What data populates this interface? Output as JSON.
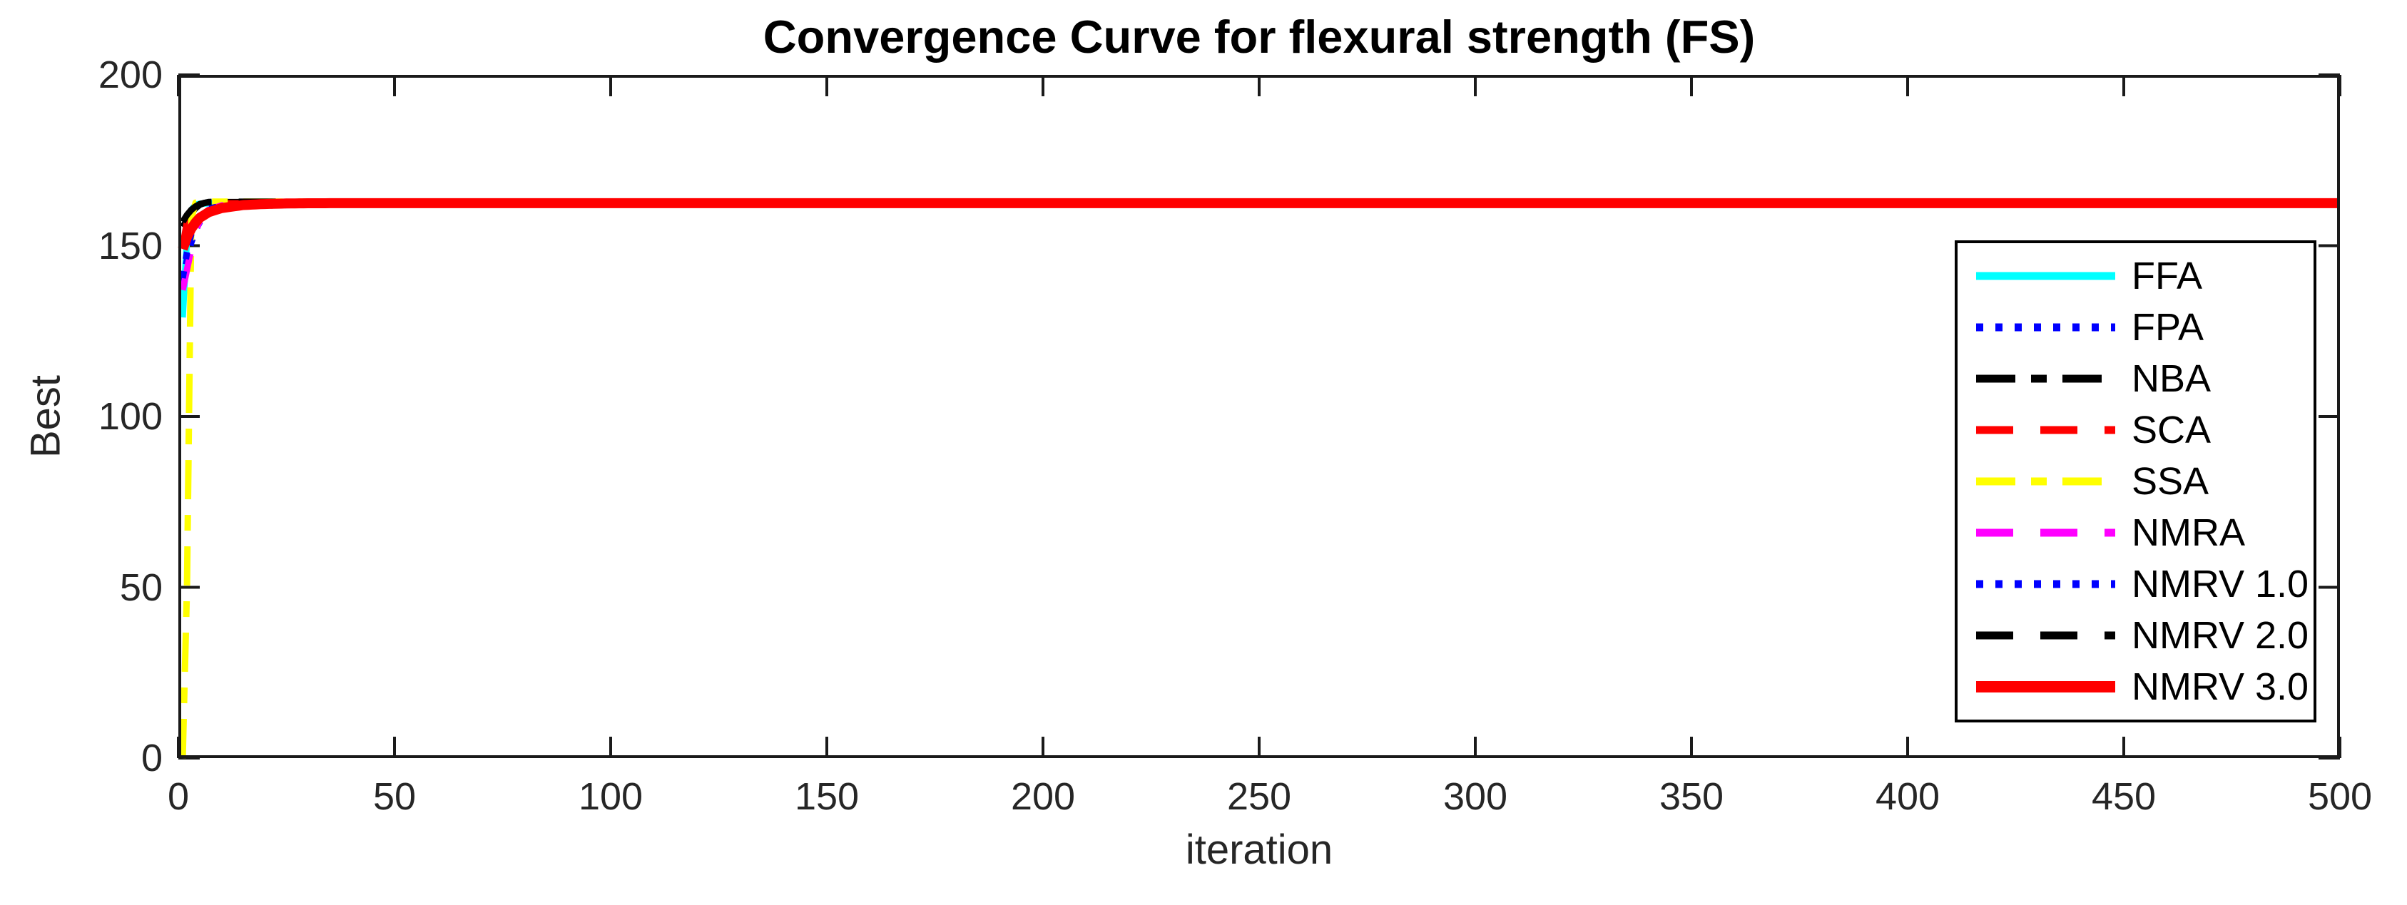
{
  "chart_data": {
    "type": "line",
    "title": "Convergence Curve for flexural strength (FS)",
    "xlabel": "iteration",
    "ylabel": "Best",
    "xlim": [
      0,
      500
    ],
    "ylim": [
      0,
      200
    ],
    "x_ticks": [
      0,
      50,
      100,
      150,
      200,
      250,
      300,
      350,
      400,
      450,
      500
    ],
    "y_ticks": [
      0,
      50,
      100,
      150,
      200
    ],
    "grid": false,
    "legend_position": "inside-right",
    "axis_color": "#1a1a1a",
    "text_color": "#262626",
    "converged_value": 162.4,
    "series": [
      {
        "name": "FFA",
        "color": "#00FFFF",
        "style": "solid",
        "width": 9,
        "points": [
          [
            1,
            129
          ],
          [
            2,
            152
          ],
          [
            3,
            160.5
          ],
          [
            4,
            162
          ],
          [
            5,
            162.3
          ],
          [
            8,
            162.4
          ],
          [
            500,
            162.4
          ]
        ]
      },
      {
        "name": "FPA",
        "color": "#0000FF",
        "style": "dotted",
        "width": 9,
        "points": [
          [
            1,
            139
          ],
          [
            2,
            146
          ],
          [
            3,
            151
          ],
          [
            4,
            154.5
          ],
          [
            5,
            157
          ],
          [
            7,
            159.8
          ],
          [
            10,
            161.2
          ],
          [
            15,
            161.6
          ],
          [
            20,
            161.8
          ],
          [
            30,
            161.95
          ],
          [
            40,
            162.05
          ],
          [
            50,
            162.3
          ],
          [
            60,
            162.4
          ],
          [
            500,
            162.4
          ]
        ]
      },
      {
        "name": "NBA",
        "color": "#000000",
        "style": "dashdot",
        "width": 9,
        "points": [
          [
            1,
            155.5
          ],
          [
            2,
            157.5
          ],
          [
            3,
            159.5
          ],
          [
            4,
            161
          ],
          [
            5,
            162
          ],
          [
            6,
            162.5
          ],
          [
            7,
            162.7
          ],
          [
            10,
            162.75
          ],
          [
            500,
            162.75
          ]
        ]
      },
      {
        "name": "SCA",
        "color": "#FF0000",
        "style": "dashed",
        "width": 9,
        "points": [
          [
            1,
            150
          ],
          [
            2,
            157
          ],
          [
            3,
            160.5
          ],
          [
            4,
            162
          ],
          [
            5,
            162.4
          ],
          [
            500,
            162.4
          ]
        ]
      },
      {
        "name": "SSA",
        "color": "#FFFF00",
        "style": "dashdot",
        "width": 9,
        "points": [
          [
            1,
            0
          ],
          [
            2,
            50
          ],
          [
            3,
            158
          ],
          [
            4,
            162.6
          ],
          [
            5,
            162.9
          ],
          [
            500,
            162.9
          ]
        ]
      },
      {
        "name": "NMRA",
        "color": "#FF00FF",
        "style": "dashed",
        "width": 9,
        "points": [
          [
            1,
            137
          ],
          [
            2,
            143
          ],
          [
            3,
            149
          ],
          [
            4,
            154
          ],
          [
            5,
            157.5
          ],
          [
            7,
            160.5
          ],
          [
            10,
            161.8
          ],
          [
            15,
            162.2
          ],
          [
            20,
            162.3
          ],
          [
            500,
            162.3
          ]
        ]
      },
      {
        "name": "NMRV 1.0",
        "color": "#0000FF",
        "style": "dotted",
        "width": 9,
        "points": [
          [
            1,
            140.5
          ],
          [
            2,
            148
          ],
          [
            3,
            153.5
          ],
          [
            4,
            156.5
          ],
          [
            5,
            158.5
          ],
          [
            7,
            160.8
          ],
          [
            10,
            161.7
          ],
          [
            15,
            161.95
          ],
          [
            20,
            162.1
          ],
          [
            30,
            162.25
          ],
          [
            50,
            162.4
          ],
          [
            500,
            162.4
          ]
        ]
      },
      {
        "name": "NMRV 2.0",
        "color": "#000000",
        "style": "dashed",
        "width": 9,
        "points": [
          [
            1,
            157
          ],
          [
            2,
            159
          ],
          [
            3,
            160.5
          ],
          [
            4,
            161.5
          ],
          [
            5,
            162.2
          ],
          [
            7,
            162.8
          ],
          [
            10,
            162.85
          ],
          [
            500,
            162.85
          ]
        ]
      },
      {
        "name": "NMRV 3.0",
        "color": "#FF0000",
        "style": "solid",
        "width": 14,
        "points": [
          [
            1,
            149
          ],
          [
            2,
            152.5
          ],
          [
            3,
            155
          ],
          [
            4,
            156.8
          ],
          [
            5,
            158.2
          ],
          [
            7,
            159.8
          ],
          [
            10,
            161
          ],
          [
            15,
            161.9
          ],
          [
            20,
            162.2
          ],
          [
            25,
            162.35
          ],
          [
            30,
            162.42
          ],
          [
            40,
            162.45
          ],
          [
            500,
            162.45
          ]
        ]
      }
    ]
  }
}
